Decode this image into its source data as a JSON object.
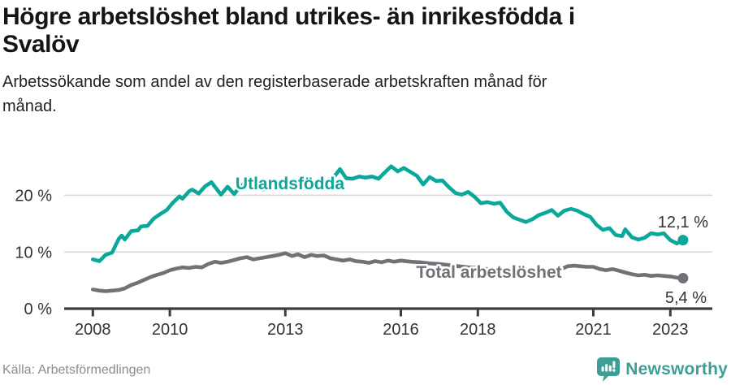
{
  "header": {
    "title": "Högre arbetslöshet bland utrikes- än inrikesfödda i\nSvalöv",
    "subtitle": "Arbetssökande som andel av den registerbaserade arbetskraften månad för\nmånad."
  },
  "chart_data": {
    "type": "line",
    "title": "Högre arbetslöshet bland utrikes- än inrikesfödda i Svalöv",
    "xlabel": "",
    "ylabel": "Arbetssökande som andel av den registerbaserade arbetskraften (%)",
    "x_unit": "decimal year, monthly data",
    "x_domain": [
      2008.0,
      2023.42
    ],
    "y_domain": [
      0,
      27
    ],
    "grid": "horizontal gridlines at 10% and 20%, x-axis baseline at 0%",
    "legend_position": "labels inline next to lines",
    "y_ticks": [
      {
        "label": "0 %",
        "value": 0
      },
      {
        "label": "10 %",
        "value": 10
      },
      {
        "label": "20 %",
        "value": 20
      }
    ],
    "x_ticks": [
      {
        "label": "2008",
        "year": 2008
      },
      {
        "label": "2010",
        "year": 2010
      },
      {
        "label": "2013",
        "year": 2013
      },
      {
        "label": "2016",
        "year": 2016
      },
      {
        "label": "2018",
        "year": 2018
      },
      {
        "label": "2021",
        "year": 2021
      },
      {
        "label": "2023",
        "year": 2023
      }
    ],
    "series": [
      {
        "name": "Utlandsfödda",
        "color": "#0aa79b",
        "end_label": "12,1 %",
        "end_value": 12.1,
        "points": [
          [
            2008.0,
            8.7
          ],
          [
            2008.17,
            8.4
          ],
          [
            2008.33,
            9.5
          ],
          [
            2008.5,
            9.9
          ],
          [
            2008.67,
            12.3
          ],
          [
            2008.75,
            12.9
          ],
          [
            2008.83,
            12.2
          ],
          [
            2009.0,
            13.7
          ],
          [
            2009.17,
            13.8
          ],
          [
            2009.25,
            14.5
          ],
          [
            2009.42,
            14.6
          ],
          [
            2009.58,
            15.9
          ],
          [
            2009.75,
            16.7
          ],
          [
            2009.92,
            17.4
          ],
          [
            2010.08,
            18.7
          ],
          [
            2010.25,
            19.8
          ],
          [
            2010.33,
            19.4
          ],
          [
            2010.5,
            20.7
          ],
          [
            2010.58,
            21.0
          ],
          [
            2010.75,
            20.3
          ],
          [
            2010.92,
            21.6
          ],
          [
            2011.08,
            22.3
          ],
          [
            2011.33,
            20.1
          ],
          [
            2011.5,
            21.5
          ],
          [
            2011.67,
            20.2
          ],
          [
            2011.83,
            21.6
          ],
          [
            2012.0,
            22.3
          ],
          [
            2012.17,
            21.3
          ],
          [
            2012.33,
            21.5
          ],
          [
            2012.42,
            21.0
          ],
          [
            2012.58,
            21.5
          ],
          [
            2012.75,
            22.1
          ],
          [
            2012.92,
            21.8
          ],
          [
            2013.08,
            22.2
          ],
          [
            2013.25,
            21.5
          ],
          [
            2013.42,
            21.8
          ],
          [
            2013.58,
            21.4
          ],
          [
            2013.75,
            22.4
          ],
          [
            2013.92,
            22.2
          ],
          [
            2014.08,
            22.6
          ],
          [
            2014.25,
            23.1
          ],
          [
            2014.42,
            24.6
          ],
          [
            2014.58,
            23.0
          ],
          [
            2014.75,
            22.9
          ],
          [
            2014.92,
            23.3
          ],
          [
            2015.08,
            23.1
          ],
          [
            2015.25,
            23.3
          ],
          [
            2015.42,
            22.9
          ],
          [
            2015.58,
            24.0
          ],
          [
            2015.75,
            25.1
          ],
          [
            2015.92,
            24.2
          ],
          [
            2016.08,
            24.8
          ],
          [
            2016.25,
            24.1
          ],
          [
            2016.42,
            23.4
          ],
          [
            2016.58,
            21.9
          ],
          [
            2016.75,
            23.2
          ],
          [
            2016.92,
            22.5
          ],
          [
            2017.08,
            22.6
          ],
          [
            2017.25,
            21.4
          ],
          [
            2017.42,
            20.4
          ],
          [
            2017.58,
            20.1
          ],
          [
            2017.75,
            20.6
          ],
          [
            2017.92,
            19.7
          ],
          [
            2018.08,
            18.6
          ],
          [
            2018.25,
            18.8
          ],
          [
            2018.42,
            18.5
          ],
          [
            2018.58,
            18.7
          ],
          [
            2018.75,
            17.1
          ],
          [
            2018.92,
            16.1
          ],
          [
            2019.08,
            15.7
          ],
          [
            2019.25,
            15.3
          ],
          [
            2019.42,
            15.8
          ],
          [
            2019.58,
            16.5
          ],
          [
            2019.75,
            16.9
          ],
          [
            2019.92,
            17.4
          ],
          [
            2020.08,
            16.4
          ],
          [
            2020.25,
            17.3
          ],
          [
            2020.42,
            17.6
          ],
          [
            2020.58,
            17.3
          ],
          [
            2020.75,
            16.7
          ],
          [
            2020.92,
            16.2
          ],
          [
            2021.08,
            14.8
          ],
          [
            2021.25,
            13.9
          ],
          [
            2021.42,
            14.2
          ],
          [
            2021.58,
            13.0
          ],
          [
            2021.75,
            12.8
          ],
          [
            2021.83,
            14.0
          ],
          [
            2022.0,
            12.6
          ],
          [
            2022.17,
            12.2
          ],
          [
            2022.33,
            12.5
          ],
          [
            2022.5,
            13.3
          ],
          [
            2022.67,
            13.1
          ],
          [
            2022.83,
            13.3
          ],
          [
            2023.0,
            12.1
          ],
          [
            2023.17,
            11.5
          ],
          [
            2023.33,
            12.1
          ]
        ]
      },
      {
        "name": "Total arbetslöshet",
        "color": "#757078",
        "end_label": "5,4 %",
        "end_value": 5.4,
        "points": [
          [
            2008.0,
            3.4
          ],
          [
            2008.17,
            3.2
          ],
          [
            2008.33,
            3.1
          ],
          [
            2008.5,
            3.2
          ],
          [
            2008.67,
            3.3
          ],
          [
            2008.83,
            3.6
          ],
          [
            2009.0,
            4.2
          ],
          [
            2009.17,
            4.6
          ],
          [
            2009.33,
            5.1
          ],
          [
            2009.5,
            5.6
          ],
          [
            2009.67,
            6.0
          ],
          [
            2009.83,
            6.3
          ],
          [
            2010.0,
            6.8
          ],
          [
            2010.17,
            7.1
          ],
          [
            2010.33,
            7.3
          ],
          [
            2010.5,
            7.2
          ],
          [
            2010.67,
            7.4
          ],
          [
            2010.83,
            7.3
          ],
          [
            2011.0,
            7.9
          ],
          [
            2011.17,
            8.3
          ],
          [
            2011.33,
            8.1
          ],
          [
            2011.5,
            8.3
          ],
          [
            2011.67,
            8.6
          ],
          [
            2011.83,
            8.9
          ],
          [
            2012.0,
            9.1
          ],
          [
            2012.17,
            8.7
          ],
          [
            2012.33,
            8.9
          ],
          [
            2012.5,
            9.1
          ],
          [
            2012.67,
            9.3
          ],
          [
            2012.83,
            9.5
          ],
          [
            2013.0,
            9.8
          ],
          [
            2013.17,
            9.3
          ],
          [
            2013.33,
            9.6
          ],
          [
            2013.5,
            9.1
          ],
          [
            2013.67,
            9.5
          ],
          [
            2013.83,
            9.3
          ],
          [
            2014.0,
            9.4
          ],
          [
            2014.17,
            8.9
          ],
          [
            2014.33,
            8.7
          ],
          [
            2014.5,
            8.5
          ],
          [
            2014.67,
            8.7
          ],
          [
            2014.83,
            8.4
          ],
          [
            2015.0,
            8.3
          ],
          [
            2015.17,
            8.1
          ],
          [
            2015.33,
            8.4
          ],
          [
            2015.5,
            8.2
          ],
          [
            2015.67,
            8.5
          ],
          [
            2015.83,
            8.3
          ],
          [
            2016.0,
            8.5
          ],
          [
            2016.25,
            8.3
          ],
          [
            2016.5,
            8.2
          ],
          [
            2016.75,
            8.0
          ],
          [
            2017.0,
            7.9
          ],
          [
            2017.25,
            7.7
          ],
          [
            2017.5,
            7.5
          ],
          [
            2017.75,
            7.3
          ],
          [
            2018.0,
            7.2
          ],
          [
            2018.25,
            7.0
          ],
          [
            2018.5,
            6.9
          ],
          [
            2018.75,
            6.8
          ],
          [
            2019.0,
            6.7
          ],
          [
            2019.25,
            6.6
          ],
          [
            2019.5,
            6.5
          ],
          [
            2019.75,
            6.4
          ],
          [
            2020.0,
            6.5
          ],
          [
            2020.17,
            7.0
          ],
          [
            2020.33,
            7.5
          ],
          [
            2020.5,
            7.6
          ],
          [
            2020.67,
            7.5
          ],
          [
            2020.83,
            7.4
          ],
          [
            2021.0,
            7.4
          ],
          [
            2021.17,
            7.0
          ],
          [
            2021.33,
            6.8
          ],
          [
            2021.5,
            7.0
          ],
          [
            2021.67,
            6.7
          ],
          [
            2021.83,
            6.4
          ],
          [
            2022.0,
            6.1
          ],
          [
            2022.17,
            5.9
          ],
          [
            2022.33,
            6.0
          ],
          [
            2022.5,
            5.8
          ],
          [
            2022.67,
            5.9
          ],
          [
            2022.83,
            5.8
          ],
          [
            2023.0,
            5.7
          ],
          [
            2023.17,
            5.5
          ],
          [
            2023.33,
            5.4
          ]
        ]
      }
    ],
    "colors": {
      "grid": "#d9d9d9",
      "axis": "#3d3d3d",
      "tick_text": "#333333"
    }
  },
  "footer": {
    "source": "Källa: Arbetsförmedlingen",
    "brand": "Newsworthy",
    "brand_color": "#3c9e94"
  }
}
